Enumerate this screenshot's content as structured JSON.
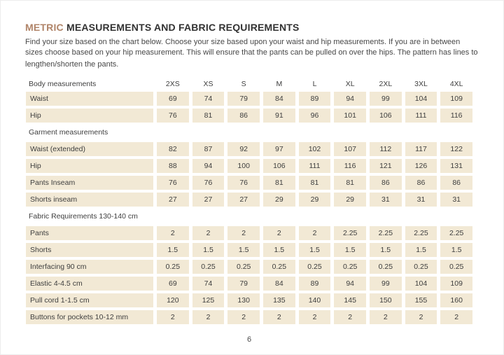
{
  "page": {
    "title_highlight": "METRIC",
    "title_rest": " MEASUREMENTS AND FABRIC REQUIREMENTS",
    "intro_lines": [
      "Find your size based on the chart below. Choose your size based upon your waist and hip measurements. If you are in between",
      "sizes choose based on your hip measurement. This will ensure that the pants can be pulled on over the hips. The pattern has lines to",
      "lengthen/shorten the pants."
    ],
    "page_number": "6"
  },
  "table": {
    "header": {
      "label": "Body measurements",
      "sizes": [
        "2XS",
        "XS",
        "S",
        "M",
        "L",
        "XL",
        "2XL",
        "3XL",
        "4XL"
      ]
    },
    "sections": [
      {
        "header": null,
        "rows": [
          {
            "label": "Waist",
            "values": [
              "69",
              "74",
              "79",
              "84",
              "89",
              "94",
              "99",
              "104",
              "109"
            ]
          },
          {
            "label": "Hip",
            "values": [
              "76",
              "81",
              "86",
              "91",
              "96",
              "101",
              "106",
              "111",
              "116"
            ]
          }
        ]
      },
      {
        "header": "Garment measurements",
        "rows": [
          {
            "label": "Waist (extended)",
            "values": [
              "82",
              "87",
              "92",
              "97",
              "102",
              "107",
              "112",
              "117",
              "122"
            ]
          },
          {
            "label": "Hip",
            "values": [
              "88",
              "94",
              "100",
              "106",
              "111",
              "116",
              "121",
              "126",
              "131"
            ]
          },
          {
            "label": "Pants Inseam",
            "values": [
              "76",
              "76",
              "76",
              "81",
              "81",
              "81",
              "86",
              "86",
              "86"
            ]
          },
          {
            "label": "Shorts inseam",
            "values": [
              "27",
              "27",
              "27",
              "29",
              "29",
              "29",
              "31",
              "31",
              "31"
            ]
          }
        ]
      },
      {
        "header": "Fabric Requirements 130-140 cm",
        "rows": [
          {
            "label": "Pants",
            "values": [
              "2",
              "2",
              "2",
              "2",
              "2",
              "2.25",
              "2.25",
              "2.25",
              "2.25"
            ]
          },
          {
            "label": "Shorts",
            "values": [
              "1.5",
              "1.5",
              "1.5",
              "1.5",
              "1.5",
              "1.5",
              "1.5",
              "1.5",
              "1.5"
            ]
          },
          {
            "label": "Interfacing 90 cm",
            "values": [
              "0.25",
              "0.25",
              "0.25",
              "0.25",
              "0.25",
              "0.25",
              "0.25",
              "0.25",
              "0.25"
            ]
          },
          {
            "label": "Elastic 4-4.5 cm",
            "values": [
              "69",
              "74",
              "79",
              "84",
              "89",
              "94",
              "99",
              "104",
              "109"
            ]
          },
          {
            "label": "Pull cord 1-1.5 cm",
            "values": [
              "120",
              "125",
              "130",
              "135",
              "140",
              "145",
              "150",
              "155",
              "160"
            ]
          },
          {
            "label": "Buttons for pockets 10-12 mm",
            "values": [
              "2",
              "2",
              "2",
              "2",
              "2",
              "2",
              "2",
              "2",
              "2"
            ]
          }
        ]
      }
    ]
  },
  "colors": {
    "accent": "#b08468",
    "cell_bg": "#f2e9d5",
    "text": "#3e3e3e"
  }
}
